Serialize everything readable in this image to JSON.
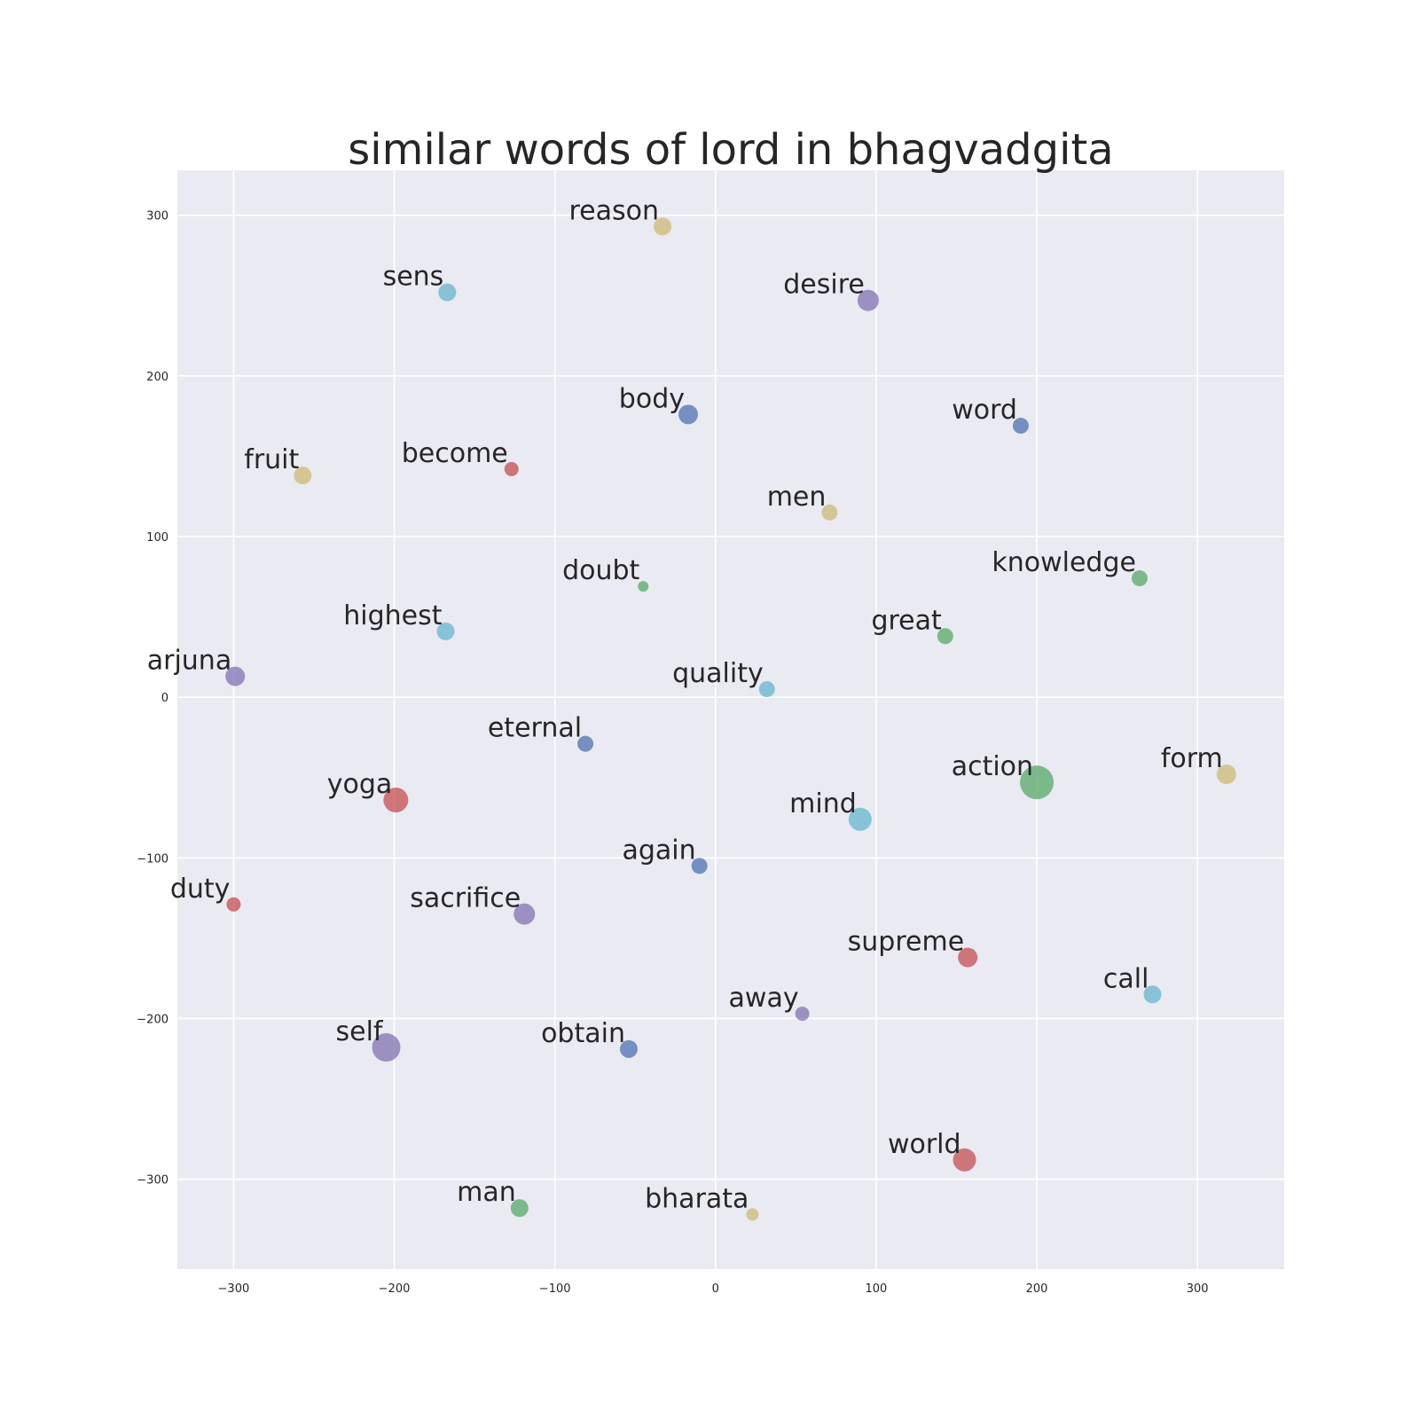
{
  "chart_data": {
    "type": "scatter",
    "title": "similar words of lord in bhagvadgita",
    "xlabel": "",
    "ylabel": "",
    "xlim": [
      -335,
      354
    ],
    "ylim": [
      -356,
      328
    ],
    "xticks": [
      -300,
      -200,
      -100,
      0,
      100,
      200,
      300
    ],
    "yticks": [
      -300,
      -200,
      -100,
      0,
      100,
      200,
      300
    ],
    "grid": true,
    "colors": {
      "blue": "#4c72b0",
      "green": "#55a868",
      "red": "#c44e52",
      "purple": "#8172b2",
      "yellow": "#ccb974",
      "cyan": "#64b5cd"
    },
    "points": [
      {
        "label": "reason",
        "x": -33,
        "y": 293,
        "color": "yellow",
        "size": 10
      },
      {
        "label": "sens",
        "x": -167,
        "y": 252,
        "color": "cyan",
        "size": 10
      },
      {
        "label": "desire",
        "x": 95,
        "y": 247,
        "color": "purple",
        "size": 12
      },
      {
        "label": "body",
        "x": -17,
        "y": 176,
        "color": "blue",
        "size": 11
      },
      {
        "label": "word",
        "x": 190,
        "y": 169,
        "color": "blue",
        "size": 9
      },
      {
        "label": "fruit",
        "x": -257,
        "y": 138,
        "color": "yellow",
        "size": 10
      },
      {
        "label": "become",
        "x": -127,
        "y": 142,
        "color": "red",
        "size": 8
      },
      {
        "label": "men",
        "x": 71,
        "y": 115,
        "color": "yellow",
        "size": 9
      },
      {
        "label": "knowledge",
        "x": 264,
        "y": 74,
        "color": "green",
        "size": 9
      },
      {
        "label": "doubt",
        "x": -45,
        "y": 69,
        "color": "green",
        "size": 6
      },
      {
        "label": "highest",
        "x": -168,
        "y": 41,
        "color": "cyan",
        "size": 10
      },
      {
        "label": "great",
        "x": 143,
        "y": 38,
        "color": "green",
        "size": 9
      },
      {
        "label": "arjuna",
        "x": -299,
        "y": 13,
        "color": "purple",
        "size": 11
      },
      {
        "label": "quality",
        "x": 32,
        "y": 5,
        "color": "cyan",
        "size": 9
      },
      {
        "label": "eternal",
        "x": -81,
        "y": -29,
        "color": "blue",
        "size": 9
      },
      {
        "label": "action",
        "x": 200,
        "y": -53,
        "color": "green",
        "size": 19
      },
      {
        "label": "form",
        "x": 318,
        "y": -48,
        "color": "yellow",
        "size": 11
      },
      {
        "label": "yoga",
        "x": -199,
        "y": -64,
        "color": "red",
        "size": 14
      },
      {
        "label": "mind",
        "x": 90,
        "y": -76,
        "color": "cyan",
        "size": 13
      },
      {
        "label": "again",
        "x": -10,
        "y": -105,
        "color": "blue",
        "size": 9
      },
      {
        "label": "duty",
        "x": -300,
        "y": -129,
        "color": "red",
        "size": 8
      },
      {
        "label": "sacrifice",
        "x": -119,
        "y": -135,
        "color": "purple",
        "size": 12
      },
      {
        "label": "supreme",
        "x": 157,
        "y": -162,
        "color": "red",
        "size": 11
      },
      {
        "label": "call",
        "x": 272,
        "y": -185,
        "color": "cyan",
        "size": 10
      },
      {
        "label": "away",
        "x": 54,
        "y": -197,
        "color": "purple",
        "size": 8
      },
      {
        "label": "self",
        "x": -205,
        "y": -218,
        "color": "purple",
        "size": 16
      },
      {
        "label": "obtain",
        "x": -54,
        "y": -219,
        "color": "blue",
        "size": 10
      },
      {
        "label": "world",
        "x": 155,
        "y": -288,
        "color": "red",
        "size": 13
      },
      {
        "label": "man",
        "x": -122,
        "y": -318,
        "color": "green",
        "size": 10
      },
      {
        "label": "bharata",
        "x": 23,
        "y": -322,
        "color": "yellow",
        "size": 7
      }
    ]
  }
}
